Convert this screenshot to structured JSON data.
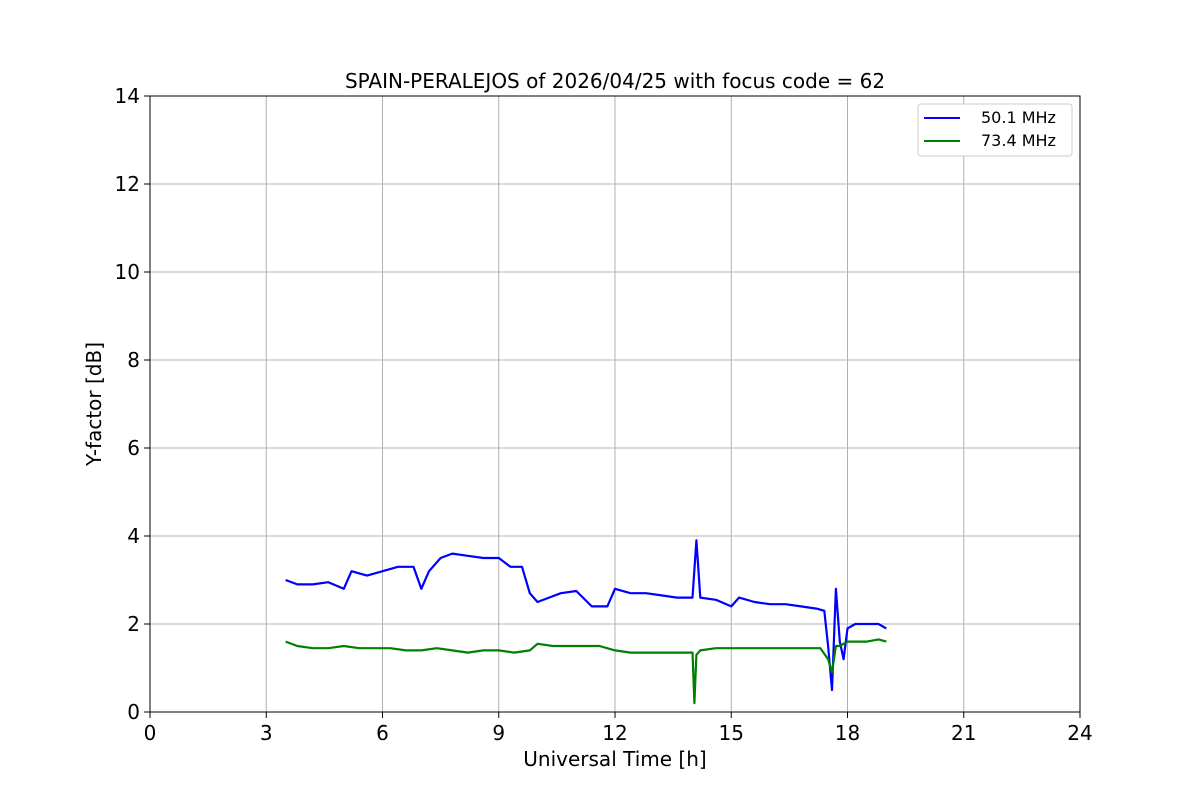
{
  "chart_data": {
    "type": "line",
    "title": "SPAIN-PERALEJOS of 2026/04/25 with focus code = 62",
    "xlabel": "Universal Time [h]",
    "ylabel": "Y-factor [dB]",
    "xlim": [
      0,
      24
    ],
    "ylim": [
      0,
      14
    ],
    "xticks": [
      0,
      3,
      6,
      9,
      12,
      15,
      18,
      21,
      24
    ],
    "yticks": [
      0,
      2,
      4,
      6,
      8,
      10,
      12,
      14
    ],
    "grid": true,
    "legend_position": "top-right",
    "series": [
      {
        "name": "50.1 MHz",
        "color": "#0000ff",
        "x": [
          3.5,
          3.8,
          4.2,
          4.6,
          5.0,
          5.2,
          5.6,
          6.0,
          6.4,
          6.8,
          7.0,
          7.2,
          7.5,
          7.8,
          8.2,
          8.6,
          9.0,
          9.3,
          9.6,
          9.8,
          10.0,
          10.3,
          10.6,
          11.0,
          11.4,
          11.8,
          12.0,
          12.4,
          12.8,
          13.2,
          13.6,
          14.0,
          14.1,
          14.2,
          14.6,
          15.0,
          15.2,
          15.6,
          16.0,
          16.4,
          16.8,
          17.2,
          17.4,
          17.5,
          17.6,
          17.7,
          17.8,
          17.9,
          18.0,
          18.2,
          18.5,
          18.8,
          19.0
        ],
        "y": [
          3.0,
          2.9,
          2.9,
          2.95,
          2.8,
          3.2,
          3.1,
          3.2,
          3.3,
          3.3,
          2.8,
          3.2,
          3.5,
          3.6,
          3.55,
          3.5,
          3.5,
          3.3,
          3.3,
          2.7,
          2.5,
          2.6,
          2.7,
          2.75,
          2.4,
          2.4,
          2.8,
          2.7,
          2.7,
          2.65,
          2.6,
          2.6,
          3.9,
          2.6,
          2.55,
          2.4,
          2.6,
          2.5,
          2.45,
          2.45,
          2.4,
          2.35,
          2.3,
          1.5,
          0.5,
          2.8,
          1.6,
          1.2,
          1.9,
          2.0,
          2.0,
          2.0,
          1.9
        ]
      },
      {
        "name": "73.4 MHz",
        "color": "#008000",
        "x": [
          3.5,
          3.8,
          4.2,
          4.6,
          5.0,
          5.4,
          5.8,
          6.2,
          6.6,
          7.0,
          7.4,
          7.8,
          8.2,
          8.6,
          9.0,
          9.4,
          9.8,
          10.0,
          10.4,
          10.8,
          11.2,
          11.6,
          12.0,
          12.4,
          12.8,
          13.2,
          13.6,
          14.0,
          14.05,
          14.1,
          14.2,
          14.6,
          15.0,
          15.4,
          15.8,
          16.2,
          16.6,
          17.0,
          17.3,
          17.5,
          17.6,
          17.7,
          17.8,
          18.0,
          18.2,
          18.5,
          18.8,
          19.0
        ],
        "y": [
          1.6,
          1.5,
          1.45,
          1.45,
          1.5,
          1.45,
          1.45,
          1.45,
          1.4,
          1.4,
          1.45,
          1.4,
          1.35,
          1.4,
          1.4,
          1.35,
          1.4,
          1.55,
          1.5,
          1.5,
          1.5,
          1.5,
          1.4,
          1.35,
          1.35,
          1.35,
          1.35,
          1.35,
          0.2,
          1.3,
          1.4,
          1.45,
          1.45,
          1.45,
          1.45,
          1.45,
          1.45,
          1.45,
          1.45,
          1.2,
          0.9,
          1.5,
          1.5,
          1.6,
          1.6,
          1.6,
          1.65,
          1.6
        ]
      }
    ]
  }
}
